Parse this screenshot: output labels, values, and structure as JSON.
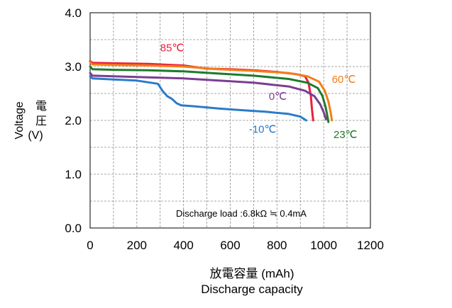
{
  "chart_data": {
    "type": "line",
    "xlabel_line1": "放電容量 (mAh)",
    "xlabel_line2": "Discharge capacity",
    "ylabel": [
      "Voltage",
      "電",
      "圧",
      "(V)"
    ],
    "xlim": [
      0,
      1200
    ],
    "ylim": [
      0,
      4.0
    ],
    "x_ticks": [
      "0",
      "200",
      "400",
      "600",
      "800",
      "1000",
      "1200"
    ],
    "y_ticks": [
      "0.0",
      "1.0",
      "2.0",
      "3.0",
      "4.0"
    ],
    "grid": true,
    "annotation": "Discharge load :6.8kΩ ≒ 0.4mA",
    "series": [
      {
        "name": "85℃",
        "color": "#e8203a",
        "label_at": [
          300,
          3.28
        ],
        "x": [
          0,
          10,
          100,
          250,
          400,
          500,
          600,
          700,
          800,
          880,
          920,
          935,
          945,
          950,
          955
        ],
        "y": [
          3.1,
          3.07,
          3.06,
          3.05,
          3.02,
          2.96,
          2.95,
          2.93,
          2.9,
          2.86,
          2.82,
          2.7,
          2.45,
          2.2,
          2.0
        ]
      },
      {
        "name": "60℃",
        "color": "#f27e18",
        "label_at": [
          1035,
          2.7
        ],
        "x": [
          0,
          10,
          100,
          250,
          400,
          550,
          700,
          850,
          930,
          980,
          1005,
          1020,
          1030,
          1035
        ],
        "y": [
          3.08,
          3.04,
          3.03,
          3.02,
          3.0,
          2.95,
          2.92,
          2.88,
          2.82,
          2.72,
          2.55,
          2.35,
          2.15,
          2.0
        ]
      },
      {
        "name": "23℃",
        "color": "#1e7a2c",
        "label_at": [
          1042,
          1.67
        ],
        "x": [
          0,
          10,
          100,
          250,
          400,
          550,
          700,
          850,
          930,
          975,
          995,
          1008,
          1015,
          1020
        ],
        "y": [
          3.0,
          2.95,
          2.94,
          2.93,
          2.91,
          2.87,
          2.83,
          2.77,
          2.7,
          2.6,
          2.45,
          2.25,
          2.1,
          1.97
        ]
      },
      {
        "name": "0℃",
        "color": "#7b3d93",
        "label_at": [
          765,
          2.38
        ],
        "x": [
          0,
          10,
          100,
          250,
          400,
          550,
          700,
          850,
          920,
          960,
          985,
          1000,
          1010
        ],
        "y": [
          2.88,
          2.83,
          2.82,
          2.8,
          2.78,
          2.74,
          2.7,
          2.63,
          2.55,
          2.45,
          2.3,
          2.15,
          2.02
        ]
      },
      {
        "name": "-10℃",
        "color": "#2a7cc7",
        "label_at": [
          680,
          1.77
        ],
        "x": [
          0,
          10,
          100,
          200,
          290,
          310,
          330,
          350,
          370,
          390,
          450,
          550,
          650,
          750,
          850,
          900,
          925
        ],
        "y": [
          2.82,
          2.78,
          2.76,
          2.74,
          2.68,
          2.55,
          2.45,
          2.4,
          2.32,
          2.28,
          2.26,
          2.22,
          2.19,
          2.16,
          2.12,
          2.07,
          2.0
        ]
      }
    ]
  }
}
